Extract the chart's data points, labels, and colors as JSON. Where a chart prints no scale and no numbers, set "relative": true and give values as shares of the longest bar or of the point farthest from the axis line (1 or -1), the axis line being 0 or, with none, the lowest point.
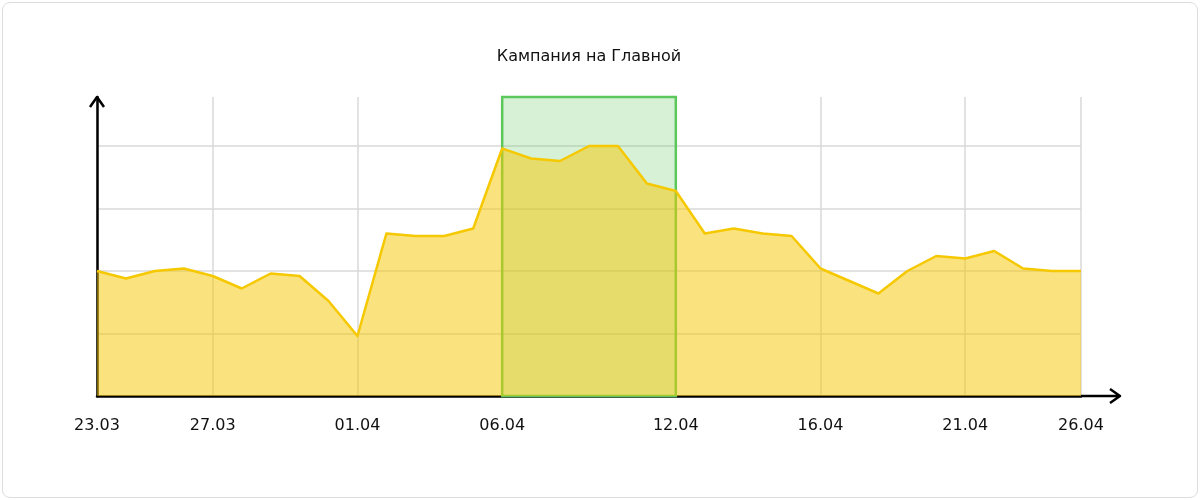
{
  "chart_data": {
    "type": "area",
    "relative": true,
    "categories": [
      "23.03",
      null,
      null,
      null,
      "27.03",
      null,
      null,
      null,
      null,
      "01.04",
      null,
      null,
      null,
      null,
      "06.04",
      null,
      null,
      null,
      null,
      null,
      "12.04",
      null,
      null,
      null,
      null,
      "16.04",
      null,
      null,
      null,
      null,
      "21.04",
      null,
      null,
      null,
      "26.04"
    ],
    "series": [
      {
        "color": "#f5c800",
        "values": [
          0.5,
          0.47,
          0.5,
          0.51,
          0.48,
          0.43,
          0.49,
          0.48,
          0.38,
          0.24,
          0.65,
          0.64,
          0.64,
          0.67,
          0.99,
          0.95,
          0.94,
          1,
          1,
          0.85,
          0.82,
          0.65,
          0.67,
          0.65,
          0.64,
          0.51,
          0.46,
          0.41,
          0.5,
          0.56,
          0.55,
          0.58,
          0.51,
          0.5,
          0.5
        ]
      }
    ],
    "bands": [
      {
        "axis": "x",
        "from": "06.04",
        "to": "12.04",
        "label": "Кампания на Главной",
        "color": "#5cc85c"
      }
    ],
    "grid": true
  }
}
